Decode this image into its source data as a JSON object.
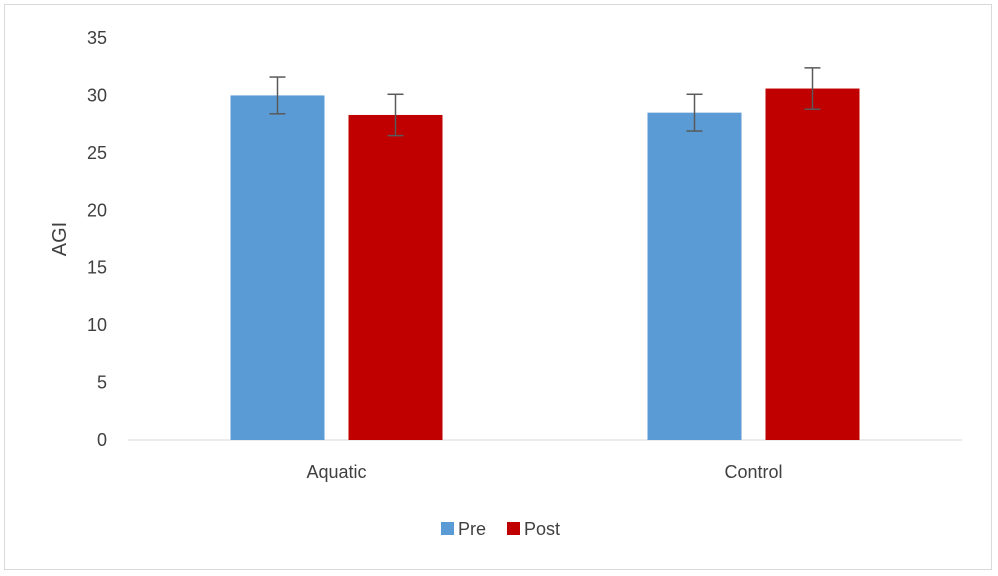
{
  "chart_data": {
    "type": "bar",
    "title": "",
    "xlabel": "",
    "ylabel": "AGI",
    "categories": [
      "Aquatic",
      "Control"
    ],
    "series": [
      {
        "name": "Pre",
        "color": "#5b9bd5",
        "values": [
          30.0,
          28.5
        ],
        "errors": [
          1.6,
          1.6
        ]
      },
      {
        "name": "Post",
        "color": "#c00000",
        "values": [
          28.3,
          30.6
        ],
        "errors": [
          1.8,
          1.8
        ]
      }
    ],
    "ylim": [
      0,
      35
    ],
    "yticks": [
      0,
      5,
      10,
      15,
      20,
      25,
      30,
      35
    ],
    "grid": false,
    "legend_position": "bottom"
  }
}
